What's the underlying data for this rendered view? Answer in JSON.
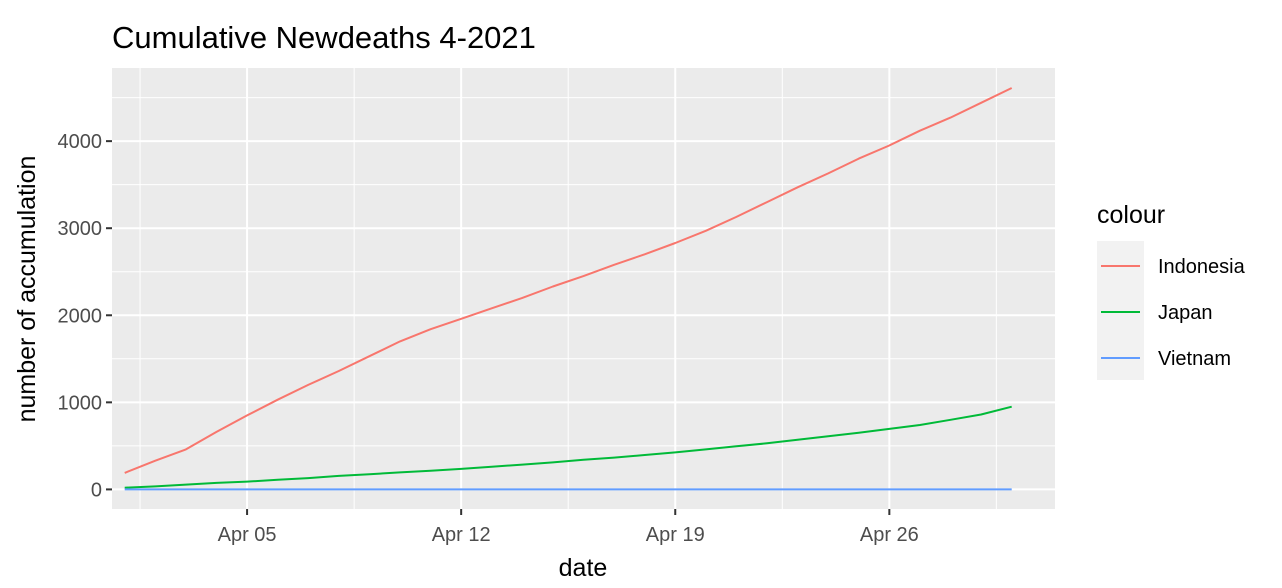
{
  "chart_data": {
    "type": "line",
    "title": "Cumulative Newdeaths 4-2021",
    "xlabel": "date",
    "ylabel": "number of accumulation",
    "x": [
      "2021-04-01",
      "2021-04-02",
      "2021-04-03",
      "2021-04-04",
      "2021-04-05",
      "2021-04-06",
      "2021-04-07",
      "2021-04-08",
      "2021-04-09",
      "2021-04-10",
      "2021-04-11",
      "2021-04-12",
      "2021-04-13",
      "2021-04-14",
      "2021-04-15",
      "2021-04-16",
      "2021-04-17",
      "2021-04-18",
      "2021-04-19",
      "2021-04-20",
      "2021-04-21",
      "2021-04-22",
      "2021-04-23",
      "2021-04-24",
      "2021-04-25",
      "2021-04-26",
      "2021-04-27",
      "2021-04-28",
      "2021-04-29",
      "2021-04-30"
    ],
    "xlim": [
      "2021-03-31T14:00",
      "2021-05-01T10:00"
    ],
    "ylim": [
      -225,
      4840
    ],
    "x_ticks": [
      "2021-04-05",
      "2021-04-12",
      "2021-04-19",
      "2021-04-26"
    ],
    "x_tick_labels": [
      "Apr 05",
      "Apr 12",
      "Apr 19",
      "Apr 26"
    ],
    "y_ticks": [
      0,
      1000,
      2000,
      3000,
      4000
    ],
    "y_tick_labels": [
      "0",
      "1000",
      "2000",
      "3000",
      "4000"
    ],
    "grid": true,
    "legend_title": "colour",
    "legend_position": "right",
    "series": [
      {
        "name": "Indonesia",
        "color": "#F8766D",
        "values": [
          190,
          330,
          460,
          660,
          850,
          1030,
          1200,
          1360,
          1530,
          1700,
          1840,
          1960,
          2080,
          2200,
          2330,
          2450,
          2580,
          2700,
          2830,
          2970,
          3130,
          3300,
          3470,
          3630,
          3800,
          3950,
          4120,
          4270,
          4440,
          4610
        ]
      },
      {
        "name": "Japan",
        "color": "#00BA38",
        "values": [
          20,
          35,
          55,
          75,
          90,
          110,
          130,
          155,
          175,
          195,
          215,
          235,
          260,
          285,
          310,
          340,
          365,
          395,
          425,
          460,
          495,
          530,
          570,
          610,
          650,
          695,
          740,
          800,
          860,
          950
        ]
      },
      {
        "name": "Vietnam",
        "color": "#619CFF",
        "values": [
          0,
          0,
          0,
          0,
          0,
          0,
          0,
          0,
          0,
          0,
          0,
          0,
          0,
          0,
          0,
          0,
          0,
          0,
          0,
          0,
          0,
          0,
          0,
          0,
          0,
          0,
          0,
          0,
          0,
          0
        ]
      }
    ]
  }
}
